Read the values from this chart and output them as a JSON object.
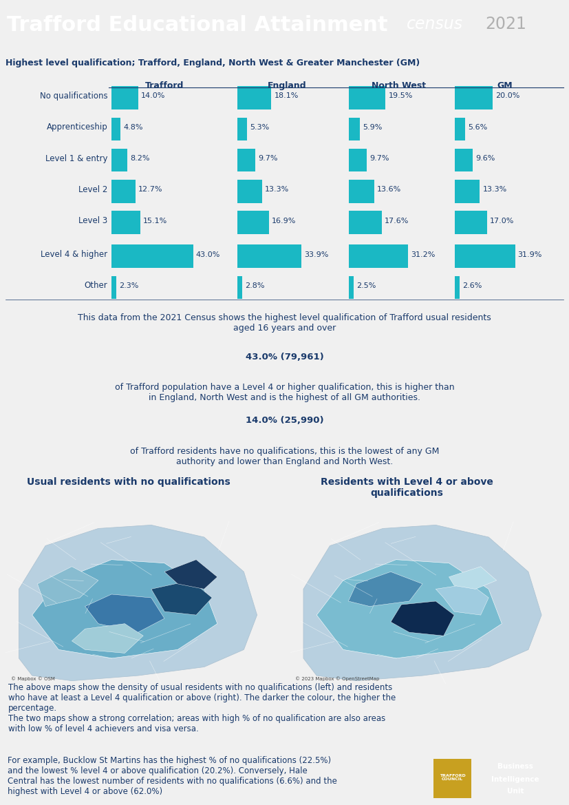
{
  "title": "Trafford Educational Attainment",
  "census_label": "census 2021",
  "header_bg": "#1a5a6b",
  "header_text_color": "#ffffff",
  "body_bg": "#f0f0f0",
  "table_title": "Highest level qualification; Trafford, England, North West & Greater Manchester (GM)",
  "table_columns": [
    "Trafford",
    "England",
    "North West",
    "GM"
  ],
  "table_rows": [
    "No qualifications",
    "Apprenticeship",
    "Level 1 & entry",
    "Level 2",
    "Level 3",
    "Level 4 & higher",
    "Other"
  ],
  "table_values": [
    [
      14.0,
      18.1,
      19.5,
      20.0
    ],
    [
      4.8,
      5.3,
      5.9,
      5.6
    ],
    [
      8.2,
      9.7,
      9.7,
      9.6
    ],
    [
      12.7,
      13.3,
      13.6,
      13.3
    ],
    [
      15.1,
      16.9,
      17.6,
      17.0
    ],
    [
      43.0,
      33.9,
      31.2,
      31.9
    ],
    [
      2.3,
      2.8,
      2.5,
      2.6
    ]
  ],
  "bar_color": "#1ab8c4",
  "bar_max": 50,
  "description_text": "This data from the 2021 Census shows the highest level qualification of Trafford usual residents\naged 16 years and over",
  "highlight1_bold": "43.0% (79,961)",
  "highlight1_rest": " of Trafford population have a Level 4 or higher qualification, this is higher than\nin England, North West and is the highest of all GM authorities.",
  "highlight2_bold": "14.0% (25,990)",
  "highlight2_rest": " of Trafford residents have no qualifications, this is the lowest of any GM\nauthority and lower than England and North West.",
  "map_left_title": "Usual residents with no qualifications",
  "map_right_title": "Residents with Level 4 or above\nqualifications",
  "map_caption": "The above maps show the density of usual residents with no qualifications (left) and residents\nwho have at least a Level 4 qualification or above (right). The darker the colour, the higher the\npercentage.\nThe two maps show a strong correlation; areas with high % of no qualification are also areas\nwith low % of level 4 achievers and visa versa.",
  "example_text": "For example, Bucklow St Martins has the highest % of no qualifications (22.5%)\nand the lowest % level 4 or above qualification (20.2%). Conversely, Hale\nCentral has the lowest number of residents with no qualifications (6.6%) and the\nhighest with Level 4 or above (62.0%)",
  "text_color": "#1a3a6b",
  "dark_navy": "#1a3355",
  "logo_bg": "#1a3355",
  "map_left_credit": "© Mapbox © OSM",
  "map_right_credit": "© 2023 Mapbox © OpenStreetMap"
}
